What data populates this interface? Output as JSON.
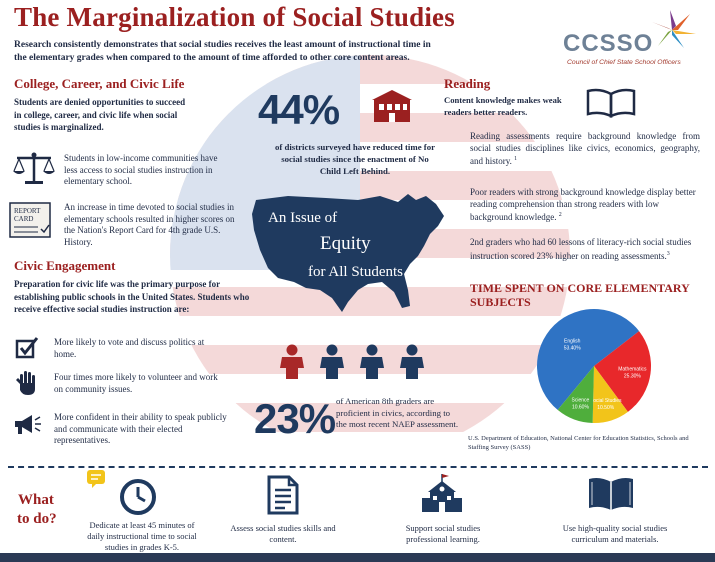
{
  "header": {
    "title": "The Marginalization of Social Studies",
    "intro": "Research consistently demonstrates that social studies receives the least amount of instructional time in the elementary grades when compared to the amount of time afforded to other core content areas."
  },
  "logo": {
    "name": "CCSSO",
    "subtitle": "Council of Chief State School Officers",
    "colors": [
      "#e0612b",
      "#7aa23f",
      "#7b3c8c",
      "#2e8fc4",
      "#f2b233"
    ]
  },
  "college": {
    "heading": "College, Career, and Civic Life",
    "lead": "Students are denied opportunities to succeed in college, career, and civic life when social studies is marginalized.",
    "items": [
      {
        "icon": "scales-icon",
        "text": "Students in low-income communities have less access to social studies instruction in elementary school."
      },
      {
        "icon": "report-card-icon",
        "text": "An increase in time devoted to social studies in elementary schools resulted in higher scores on the Nation's Report Card for 4th grade U.S. History."
      }
    ]
  },
  "civic": {
    "heading": "Civic Engagement",
    "lead": "Preparation for civic life was the primary purpose for establishing public schools in the United States. Students who receive effective social studies instruction are:",
    "items": [
      {
        "icon": "checkbox-icon",
        "text": "More likely to vote and discuss politics at home."
      },
      {
        "icon": "raised-hand-icon",
        "text": "Four times more likely to volunteer and work on community issues."
      },
      {
        "icon": "megaphone-icon",
        "text": "More confident in their ability to speak publicly and communicate with their elected representatives."
      }
    ]
  },
  "center": {
    "stat1_value": "44%",
    "stat1_text": "of districts surveyed have reduced time for social studies since the enactment of No Child Left Behind.",
    "equity_line1": "An Issue of",
    "equity_line2": "Equity",
    "equity_line3": "for All Students",
    "stat2_value": "23%",
    "stat2_text": "of American 8th graders are proficient in civics, according to the most recent NAEP assessment.",
    "people_colors": [
      "#a82828",
      "#1f3a5f",
      "#1f3a5f",
      "#1f3a5f"
    ]
  },
  "reading": {
    "heading": "Reading",
    "lead": "Content knowledge makes weak readers better readers.",
    "paragraphs": [
      "Reading assessments require background knowledge from social studies disciplines like civics, economics, geography, and history.",
      "Poor readers with strong background knowledge display better reading comprehension than strong readers with low background knowledge.",
      "2nd graders who had 60 lessons of literacy-rich social studies instruction scored 23% higher on reading assessments."
    ],
    "footnotes": [
      "1",
      "2",
      "3"
    ]
  },
  "chart_data": {
    "type": "pie",
    "title": "TIME SPENT ON CORE ELEMENTARY SUBJECTS",
    "slices": [
      {
        "label": "English",
        "value": 53.4,
        "display": "53.40%",
        "color": "#2f73c4"
      },
      {
        "label": "Mathematics",
        "value": 25.3,
        "display": "25.30%",
        "color": "#e8282b"
      },
      {
        "label": "Social Studies",
        "value": 10.5,
        "display": "10.50%",
        "color": "#f2c41a"
      },
      {
        "label": "Science",
        "value": 10.6,
        "display": "10.60%",
        "color": "#4fae3c"
      }
    ],
    "source": "U.S. Department of Education, National Center for Education Statistics, Schools and Staffing Survey (SASS)"
  },
  "todo": {
    "heading_line1": "What",
    "heading_line2": "to do?",
    "items": [
      {
        "icon": "clock-icon",
        "text": "Dedicate at least 45 minutes of daily instructional time to social studies in grades K-5."
      },
      {
        "icon": "document-icon",
        "text": "Assess social studies skills and content."
      },
      {
        "icon": "schoolhouse-icon",
        "text": "Support social studies professional learning."
      },
      {
        "icon": "book-icon",
        "text": "Use high-quality social studies curriculum and materials."
      }
    ]
  }
}
